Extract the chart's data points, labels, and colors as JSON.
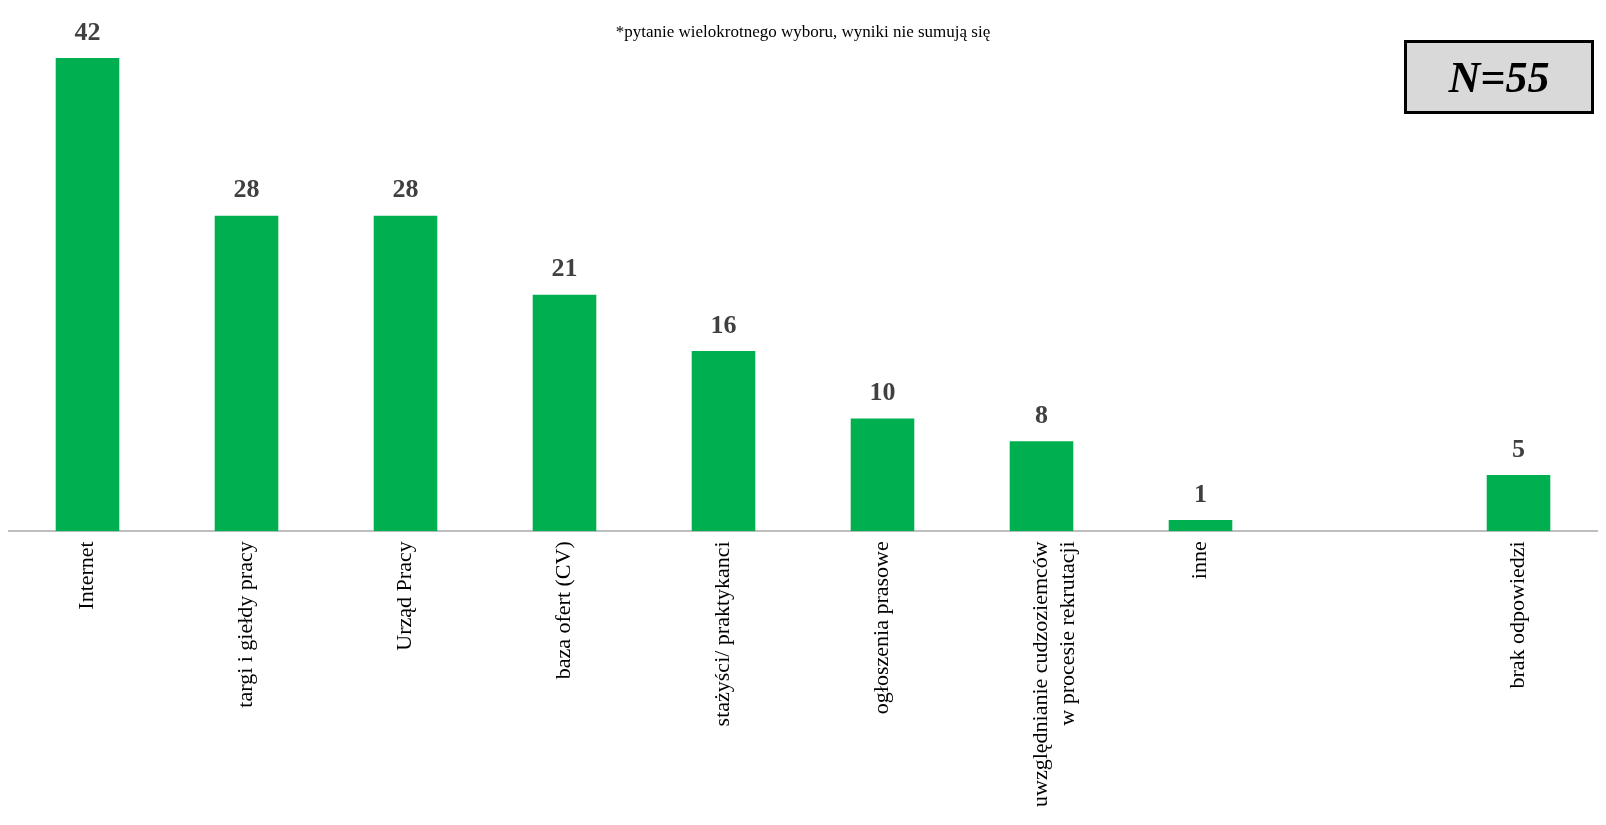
{
  "chart_data": {
    "type": "bar",
    "categories": [
      "Internet",
      "targi i giełdy pracy",
      "Urząd Pracy",
      "baza ofert (CV)",
      "stażyści/ praktykanci",
      "ogłoszenia prasowe",
      "uwzględnianie cudzoziemców\nw procesie rekrutacji",
      "inne",
      null,
      "brak odpowiedzi"
    ],
    "values": [
      42,
      28,
      28,
      21,
      16,
      10,
      8,
      1,
      null,
      5
    ],
    "color": "#00b050",
    "data_labels": true,
    "grid": false,
    "annotations": [
      "*pytanie wielokrotnego wyboru, wyniki nie sumują się",
      "N=55"
    ]
  }
}
